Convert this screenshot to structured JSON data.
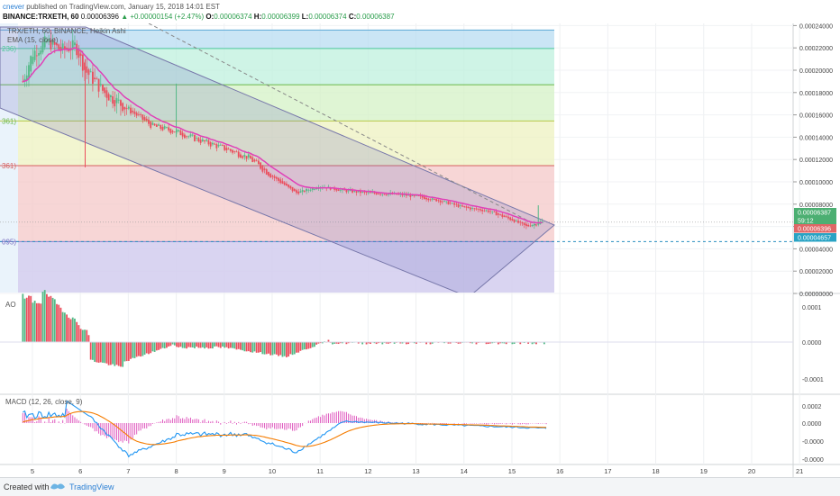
{
  "header": {
    "author": "cnever",
    "published_text": "published on TradingView.com, January 15, 2018 14:01 EST",
    "symbol_line": "BINANCE:TRXETH, 60",
    "o_label": "O:",
    "o_value": "0.00006374",
    "h_label": "H:",
    "h_value": "0.00006399",
    "l_label": "L:",
    "l_value": "0.00006374",
    "c_label": "C:",
    "c_value": "0.00006387",
    "last_price": "0.00006396",
    "change": "▲ +0.00000154 (+2.47%)"
  },
  "main_legend": {
    "title": "TRX/ETH, 60, BINANCE, Heikin Ashi",
    "ema": "EMA (15, close)"
  },
  "fib_labels": [
    "236)",
    "361)",
    "361)",
    "095)"
  ],
  "price_axis": {
    "ticks": [
      "0.00024000",
      "0.00022000",
      "0.00020000",
      "0.00018000",
      "0.00016000",
      "0.00014000",
      "0.00012000",
      "0.00010000",
      "0.00008000",
      "0.00006000",
      "0.00004000",
      "0.00002000",
      "0.00000000"
    ],
    "badges": [
      {
        "text": "0.00006387",
        "color": "#4caf72"
      },
      {
        "text": "59:12",
        "color": "#4caf72"
      },
      {
        "text": "0.00006396",
        "color": "#e06666"
      },
      {
        "text": "0.00004657",
        "color": "#29a3c4"
      }
    ]
  },
  "ao_panel": {
    "label": "AO",
    "ticks": [
      "0.0001",
      "0.0000",
      "-0.0001"
    ]
  },
  "macd_panel": {
    "label": "MACD (12, 26, close, 9)",
    "ticks": [
      "0.0002",
      "0.0000",
      "-0.0000",
      "-0.0000"
    ]
  },
  "time_axis": {
    "ticks": [
      "5",
      "6",
      "7",
      "8",
      "9",
      "10",
      "11",
      "12",
      "13",
      "14",
      "15",
      "16",
      "17",
      "18",
      "19",
      "20",
      "21"
    ]
  },
  "colors": {
    "up": "#53b987",
    "down": "#eb4d5c",
    "ema": "#e040b8",
    "macd": "#2196f3",
    "signal": "#f57c00"
  },
  "chart_data": {
    "type": "candlestick",
    "title": "TRX/ETH, 60, BINANCE, Heikin Ashi",
    "x_range": [
      "Jan 5",
      "Jan 21"
    ],
    "y_range": [
      0,
      0.00024
    ],
    "close_path": [
      {
        "day": 4.8,
        "price": 0.00019
      },
      {
        "day": 5.0,
        "price": 0.000215
      },
      {
        "day": 5.3,
        "price": 0.000226
      },
      {
        "day": 5.6,
        "price": 0.000218
      },
      {
        "day": 5.9,
        "price": 0.000222
      },
      {
        "day": 6.1,
        "price": 0.0002
      },
      {
        "day": 6.5,
        "price": 0.00018
      },
      {
        "day": 7.0,
        "price": 0.000165
      },
      {
        "day": 7.5,
        "price": 0.00015
      },
      {
        "day": 8.0,
        "price": 0.000145
      },
      {
        "day": 8.5,
        "price": 0.000137
      },
      {
        "day": 9.0,
        "price": 0.00013
      },
      {
        "day": 9.5,
        "price": 0.000122
      },
      {
        "day": 10.0,
        "price": 0.000105
      },
      {
        "day": 10.5,
        "price": 9e-05
      },
      {
        "day": 11.0,
        "price": 9.6e-05
      },
      {
        "day": 11.5,
        "price": 9.2e-05
      },
      {
        "day": 12.0,
        "price": 9e-05
      },
      {
        "day": 12.5,
        "price": 8.9e-05
      },
      {
        "day": 13.0,
        "price": 8.7e-05
      },
      {
        "day": 13.5,
        "price": 8.3e-05
      },
      {
        "day": 14.0,
        "price": 7.7e-05
      },
      {
        "day": 14.5,
        "price": 7.4e-05
      },
      {
        "day": 15.0,
        "price": 6.6e-05
      },
      {
        "day": 15.3,
        "price": 6e-05
      },
      {
        "day": 15.6,
        "price": 6.4e-05
      }
    ],
    "fib_levels": [
      0.000236,
      0.0002195,
      0.000187,
      0.0001545,
      0.0001145,
      4.65e-05
    ],
    "last_close": 6.387e-05
  }
}
